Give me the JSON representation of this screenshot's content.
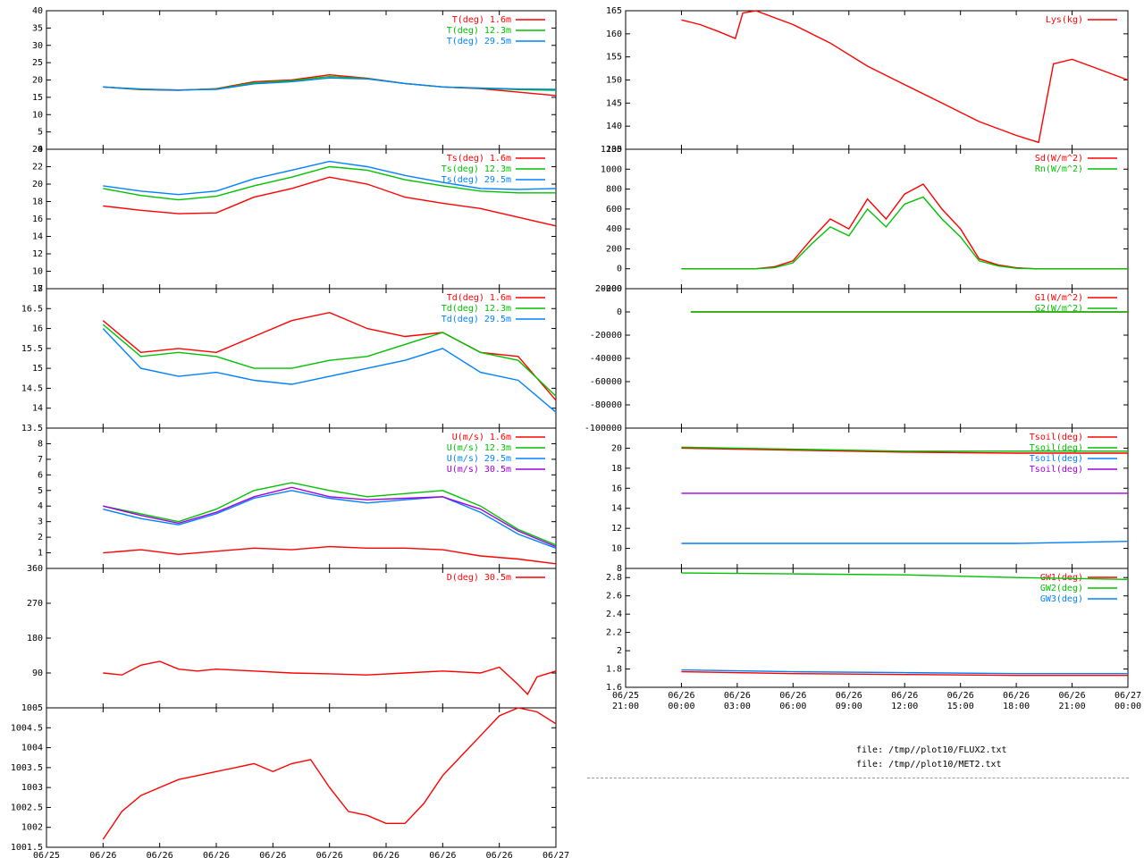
{
  "colors": {
    "red": "#ff0000",
    "green": "#00c000",
    "blue": "#0080ff",
    "purple": "#a000e0",
    "axis": "#000000"
  },
  "time_labels": [
    [
      "06/25",
      "21:00"
    ],
    [
      "06/26",
      "00:00"
    ],
    [
      "06/26",
      "03:00"
    ],
    [
      "06/26",
      "06:00"
    ],
    [
      "06/26",
      "09:00"
    ],
    [
      "06/26",
      "12:00"
    ],
    [
      "06/26",
      "15:00"
    ],
    [
      "06/26",
      "18:00"
    ],
    [
      "06/26",
      "21:00"
    ],
    [
      "06/27",
      "00:00"
    ]
  ],
  "files": [
    "file: /tmp//plot10/FLUX2.txt",
    "file: /tmp//plot10/MET2.txt"
  ],
  "chart_data": [
    {
      "type": "line",
      "id": "air-temp",
      "ylim": [
        0,
        40
      ],
      "yticks": [
        "0",
        "5",
        "10",
        "15",
        "20",
        "25",
        "30",
        "35",
        "40"
      ],
      "series": [
        {
          "name": "T(deg)  1.6m",
          "color": "red",
          "x": [
            0,
            2,
            4,
            6,
            8,
            10,
            12,
            14,
            16,
            18,
            20,
            22,
            24
          ],
          "y": [
            18,
            17.2,
            17,
            17.5,
            19.5,
            20,
            21.5,
            20.5,
            19,
            18,
            17.5,
            16.5,
            15.5
          ]
        },
        {
          "name": "T(deg) 12.3m",
          "color": "green",
          "x": [
            0,
            2,
            4,
            6,
            8,
            10,
            12,
            14,
            16,
            18,
            20,
            22,
            24
          ],
          "y": [
            18,
            17.3,
            17.1,
            17.4,
            19.2,
            19.8,
            21,
            20.4,
            19,
            18,
            17.6,
            17.2,
            17
          ]
        },
        {
          "name": "T(deg) 29.5m",
          "color": "blue",
          "x": [
            0,
            2,
            4,
            6,
            8,
            10,
            12,
            14,
            16,
            18,
            20,
            22,
            24
          ],
          "y": [
            18,
            17.4,
            17.1,
            17.3,
            18.9,
            19.5,
            20.6,
            20.3,
            19,
            18,
            17.7,
            17.4,
            17.3
          ]
        }
      ]
    },
    {
      "type": "line",
      "id": "surface-temp",
      "ylim": [
        8,
        24
      ],
      "yticks": [
        "8",
        "10",
        "12",
        "14",
        "16",
        "18",
        "20",
        "22",
        "24"
      ],
      "series": [
        {
          "name": "Ts(deg)  1.6m",
          "color": "red",
          "x": [
            0,
            2,
            4,
            6,
            8,
            10,
            12,
            14,
            16,
            18,
            20,
            22,
            24
          ],
          "y": [
            17.5,
            17,
            16.6,
            16.7,
            18.5,
            19.5,
            20.8,
            20,
            18.5,
            17.8,
            17.2,
            16.2,
            15.2
          ]
        },
        {
          "name": "Ts(deg) 12.3m",
          "color": "green",
          "x": [
            0,
            2,
            4,
            6,
            8,
            10,
            12,
            14,
            16,
            18,
            20,
            22,
            24
          ],
          "y": [
            19.5,
            18.7,
            18.2,
            18.6,
            19.8,
            20.8,
            22,
            21.6,
            20.5,
            19.8,
            19.2,
            19,
            19
          ]
        },
        {
          "name": "Ts(deg) 29.5m",
          "color": "blue",
          "x": [
            0,
            2,
            4,
            6,
            8,
            10,
            12,
            14,
            16,
            18,
            20,
            22,
            24
          ],
          "y": [
            19.8,
            19.2,
            18.8,
            19.2,
            20.6,
            21.6,
            22.6,
            22,
            21,
            20.2,
            19.5,
            19.4,
            19.5
          ]
        }
      ]
    },
    {
      "type": "line",
      "id": "dew-point",
      "ylim": [
        13.5,
        17
      ],
      "yticks": [
        "13.5",
        "14",
        "14.5",
        "15",
        "15.5",
        "16",
        "16.5",
        "17"
      ],
      "series": [
        {
          "name": "Td(deg)  1.6m",
          "color": "red",
          "x": [
            0,
            2,
            4,
            6,
            8,
            10,
            12,
            14,
            16,
            18,
            20,
            22,
            24
          ],
          "y": [
            16.2,
            15.4,
            15.5,
            15.4,
            15.8,
            16.2,
            16.4,
            16,
            15.8,
            15.9,
            15.4,
            15.3,
            14.2
          ]
        },
        {
          "name": "Td(deg) 12.3m",
          "color": "green",
          "x": [
            0,
            2,
            4,
            6,
            8,
            10,
            12,
            14,
            16,
            18,
            20,
            22,
            24
          ],
          "y": [
            16.1,
            15.3,
            15.4,
            15.3,
            15,
            15,
            15.2,
            15.3,
            15.6,
            15.9,
            15.4,
            15.2,
            14.3
          ]
        },
        {
          "name": "Td(deg) 29.5m",
          "color": "blue",
          "x": [
            0,
            2,
            4,
            6,
            8,
            10,
            12,
            14,
            16,
            18,
            20,
            22,
            24
          ],
          "y": [
            16,
            15,
            14.8,
            14.9,
            14.7,
            14.6,
            14.8,
            15,
            15.2,
            15.5,
            14.9,
            14.7,
            13.9
          ]
        }
      ]
    },
    {
      "type": "line",
      "id": "wind-speed",
      "ylim": [
        0,
        9
      ],
      "yticks": [
        "1",
        "2",
        "3",
        "4",
        "5",
        "6",
        "7",
        "8"
      ],
      "series": [
        {
          "name": "U(m/s)  1.6m",
          "color": "red",
          "x": [
            0,
            2,
            4,
            6,
            8,
            10,
            12,
            14,
            16,
            18,
            20,
            22,
            24
          ],
          "y": [
            1,
            1.2,
            0.9,
            1.1,
            1.3,
            1.2,
            1.4,
            1.3,
            1.3,
            1.2,
            0.8,
            0.6,
            0.3
          ]
        },
        {
          "name": "U(m/s) 12.3m",
          "color": "green",
          "x": [
            0,
            2,
            4,
            6,
            8,
            10,
            12,
            14,
            16,
            18,
            20,
            22,
            24
          ],
          "y": [
            4,
            3.5,
            3,
            3.8,
            5,
            5.5,
            5,
            4.6,
            4.8,
            5,
            4,
            2.5,
            1.5
          ]
        },
        {
          "name": "U(m/s) 29.5m",
          "color": "blue",
          "x": [
            0,
            2,
            4,
            6,
            8,
            10,
            12,
            14,
            16,
            18,
            20,
            22,
            24
          ],
          "y": [
            3.8,
            3.2,
            2.8,
            3.5,
            4.5,
            5,
            4.5,
            4.2,
            4.4,
            4.6,
            3.6,
            2.2,
            1.3
          ]
        },
        {
          "name": "U(m/s) 30.5m",
          "color": "purple",
          "x": [
            0,
            2,
            4,
            6,
            8,
            10,
            12,
            14,
            16,
            18,
            20,
            22,
            24
          ],
          "y": [
            4,
            3.4,
            2.9,
            3.6,
            4.6,
            5.2,
            4.6,
            4.4,
            4.5,
            4.6,
            3.8,
            2.4,
            1.4
          ]
        }
      ]
    },
    {
      "type": "line",
      "id": "wind-direction",
      "ylim": [
        0,
        360
      ],
      "yticks": [
        "90",
        "180",
        "270",
        "360"
      ],
      "series": [
        {
          "name": "D(deg)  30.5m",
          "color": "red",
          "x": [
            0,
            1,
            2,
            3,
            4,
            5,
            6,
            8,
            10,
            12,
            14,
            16,
            18,
            20,
            21,
            22,
            22.5,
            23,
            24
          ],
          "y": [
            90,
            85,
            110,
            120,
            100,
            95,
            100,
            95,
            90,
            88,
            85,
            90,
            95,
            90,
            105,
            60,
            35,
            80,
            95
          ]
        }
      ]
    },
    {
      "type": "line",
      "id": "pressure",
      "ylim": [
        1001.5,
        1005
      ],
      "yticks": [
        "1001.5",
        "1002",
        "1002.5",
        "1003",
        "1003.5",
        "1004",
        "1004.5",
        "1005"
      ],
      "series": [
        {
          "name": "",
          "color": "red",
          "x": [
            0,
            1,
            2,
            3,
            4,
            5,
            6,
            7,
            8,
            9,
            10,
            11,
            12,
            13,
            14,
            15,
            16,
            17,
            18,
            19,
            20,
            21,
            22,
            23,
            24
          ],
          "y": [
            1001.7,
            1002.4,
            1002.8,
            1003,
            1003.2,
            1003.3,
            1003.4,
            1003.5,
            1003.6,
            1003.4,
            1003.6,
            1003.7,
            1003,
            1002.4,
            1002.3,
            1002.1,
            1002.1,
            1002.6,
            1003.3,
            1003.8,
            1004.3,
            1004.8,
            1005,
            1004.9,
            1004.6
          ]
        }
      ]
    },
    {
      "type": "line",
      "id": "snow-weight",
      "ylim": [
        135,
        165
      ],
      "yticks": [
        "135",
        "140",
        "145",
        "150",
        "155",
        "160",
        "165"
      ],
      "series": [
        {
          "name": "Lys(kg)",
          "color": "red",
          "x": [
            0,
            1,
            2,
            2.9,
            3.3,
            4,
            6,
            8,
            10,
            12,
            14,
            16,
            18,
            19.2,
            19.6,
            20,
            21,
            22,
            24
          ],
          "y": [
            163,
            162,
            160.5,
            159,
            164.5,
            165,
            162,
            158,
            153,
            149,
            145,
            141,
            138,
            136.5,
            145,
            153.5,
            154.5,
            153,
            150
          ]
        }
      ]
    },
    {
      "type": "line",
      "id": "radiation",
      "ylim": [
        -200,
        1200
      ],
      "yticks": [
        "-200",
        "0",
        "200",
        "400",
        "600",
        "800",
        "1000",
        "1200"
      ],
      "series": [
        {
          "name": "Sd(W/m^2)",
          "color": "red",
          "x": [
            0,
            2,
            4,
            5,
            6,
            7,
            8,
            9,
            10,
            11,
            12,
            13,
            14,
            15,
            16,
            17,
            18,
            19,
            20,
            22,
            24
          ],
          "y": [
            0,
            0,
            0,
            20,
            80,
            300,
            500,
            400,
            700,
            500,
            750,
            850,
            600,
            400,
            100,
            40,
            10,
            0,
            0,
            0,
            0
          ]
        },
        {
          "name": "Rn(W/m^2)",
          "color": "green",
          "x": [
            0,
            2,
            4,
            5,
            6,
            7,
            8,
            9,
            10,
            11,
            12,
            13,
            14,
            15,
            16,
            17,
            18,
            19,
            20,
            22,
            24
          ],
          "y": [
            0,
            0,
            0,
            10,
            60,
            250,
            420,
            330,
            600,
            420,
            650,
            720,
            500,
            320,
            80,
            30,
            5,
            0,
            0,
            0,
            0
          ]
        }
      ]
    },
    {
      "type": "line",
      "id": "ground-flux",
      "ylim": [
        -100000,
        20000
      ],
      "yticks": [
        "-100000",
        "-80000",
        "-60000",
        "-40000",
        "-20000",
        "0",
        "20000"
      ],
      "series": [
        {
          "name": "G1(W/m^2)",
          "color": "red",
          "x": [
            0.5,
            24
          ],
          "y": [
            0,
            0
          ]
        },
        {
          "name": "G2(W/m^2)",
          "color": "green",
          "x": [
            0.5,
            24
          ],
          "y": [
            0,
            0
          ]
        }
      ]
    },
    {
      "type": "line",
      "id": "soil-temp",
      "ylim": [
        8,
        22
      ],
      "yticks": [
        "8",
        "10",
        "12",
        "14",
        "16",
        "18",
        "20"
      ],
      "series": [
        {
          "name": "Tsoil(deg)",
          "color": "red",
          "x": [
            0,
            6,
            12,
            18,
            24
          ],
          "y": [
            20,
            19.8,
            19.6,
            19.5,
            19.5
          ]
        },
        {
          "name": "Tsoil(deg)",
          "color": "green",
          "x": [
            0,
            6,
            12,
            18,
            24
          ],
          "y": [
            20.1,
            19.9,
            19.7,
            19.7,
            19.7
          ]
        },
        {
          "name": "Tsoil(deg)",
          "color": "blue",
          "x": [
            0,
            6,
            12,
            18,
            24
          ],
          "y": [
            10.5,
            10.5,
            10.5,
            10.5,
            10.7
          ]
        },
        {
          "name": "Tsoil(deg)",
          "color": "purple",
          "x": [
            0,
            6,
            12,
            18,
            24
          ],
          "y": [
            15.5,
            15.5,
            15.5,
            15.5,
            15.5
          ]
        }
      ]
    },
    {
      "type": "line",
      "id": "ground-water",
      "ylim": [
        1.6,
        2.9
      ],
      "yticks": [
        "1.6",
        "1.8",
        "2",
        "2.2",
        "2.4",
        "2.6",
        "2.8"
      ],
      "series": [
        {
          "name": "GW1(deg)",
          "color": "red",
          "x": [
            0,
            6,
            12,
            18,
            24
          ],
          "y": [
            1.77,
            1.75,
            1.74,
            1.73,
            1.73
          ]
        },
        {
          "name": "GW2(deg)",
          "color": "green",
          "x": [
            0,
            6,
            12,
            18,
            24
          ],
          "y": [
            2.85,
            2.84,
            2.83,
            2.8,
            2.78
          ]
        },
        {
          "name": "GW3(deg)",
          "color": "blue",
          "x": [
            0,
            6,
            12,
            18,
            24
          ],
          "y": [
            1.79,
            1.77,
            1.76,
            1.75,
            1.75
          ]
        }
      ]
    }
  ]
}
